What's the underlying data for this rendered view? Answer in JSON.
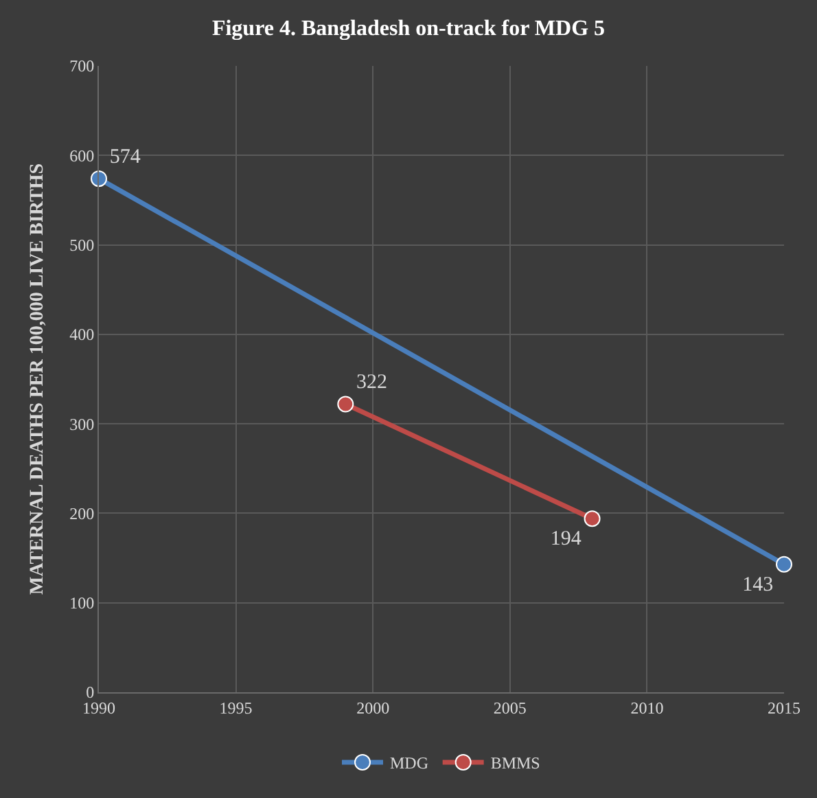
{
  "chart_data": {
    "type": "line",
    "title": "Figure 4. Bangladesh on-track for MDG 5",
    "ylabel": "MATERNAL DEATHS PER 100,000 LIVE BIRTHS",
    "series": [
      {
        "name": "MDG",
        "color": "#4a7ebb",
        "x": [
          1990,
          2015
        ],
        "values": [
          574,
          143
        ]
      },
      {
        "name": "BMMS",
        "color": "#be4b48",
        "x": [
          1999,
          2008
        ],
        "values": [
          322,
          194
        ]
      }
    ],
    "xlim": [
      1990,
      2015
    ],
    "xticks": [
      1990,
      1995,
      2000,
      2005,
      2010,
      2015
    ],
    "ylim": [
      0,
      700
    ],
    "yticks": [
      0,
      100,
      200,
      300,
      400,
      500,
      600,
      700
    ],
    "grid": true,
    "legend": "bottom",
    "marker": "circle",
    "line_style": "solid",
    "data_labels": true
  }
}
